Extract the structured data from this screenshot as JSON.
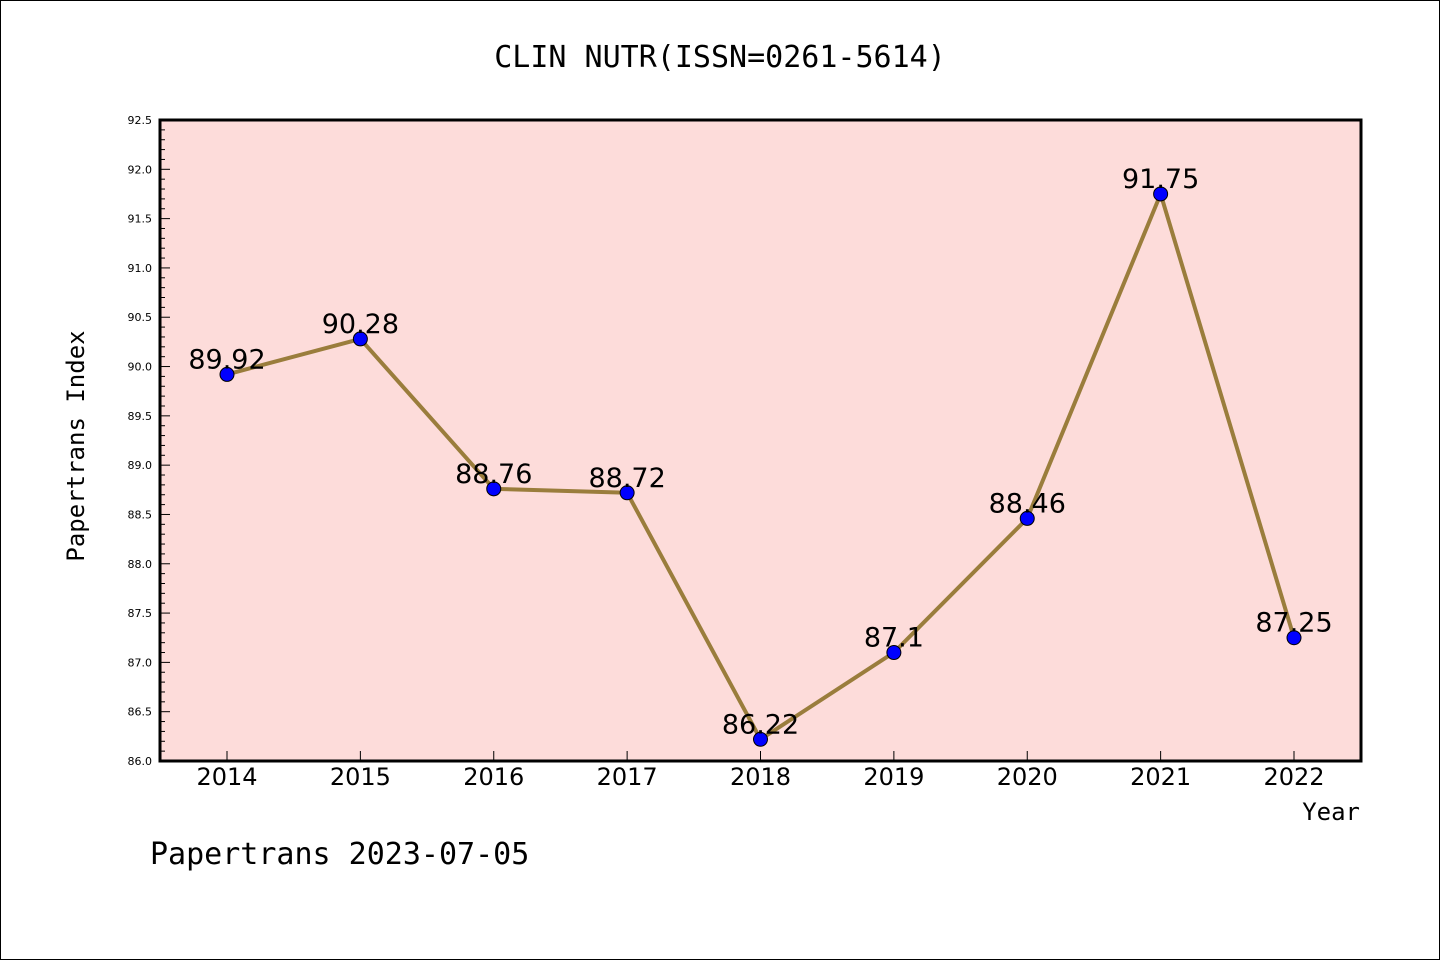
{
  "chart_data": {
    "type": "line",
    "title": "CLIN NUTR(ISSN=0261-5614)",
    "xlabel": "Year",
    "ylabel": "Papertrans Index",
    "x": [
      "2014",
      "2015",
      "2016",
      "2017",
      "2018",
      "2019",
      "2020",
      "2021",
      "2022"
    ],
    "y": [
      89.92,
      90.28,
      88.76,
      88.72,
      86.22,
      87.1,
      88.46,
      91.75,
      87.25
    ],
    "data_labels": [
      "89.92",
      "90.28",
      "88.76",
      "88.72",
      "86.22",
      "87.1",
      "88.46",
      "91.75",
      "87.25"
    ],
    "ylim": [
      86.0,
      92.5
    ],
    "yticks": [
      "86.0",
      "86.5",
      "87.0",
      "87.5",
      "88.0",
      "88.5",
      "89.0",
      "89.5",
      "90.0",
      "90.5",
      "91.0",
      "91.5",
      "92.0",
      "92.5"
    ],
    "grid": false,
    "colors": {
      "plot_background": "#fddcda",
      "line": "#9a7d3c",
      "marker": "#0000ff"
    }
  },
  "footer": {
    "watermark": "Papertrans 2023-07-05"
  }
}
